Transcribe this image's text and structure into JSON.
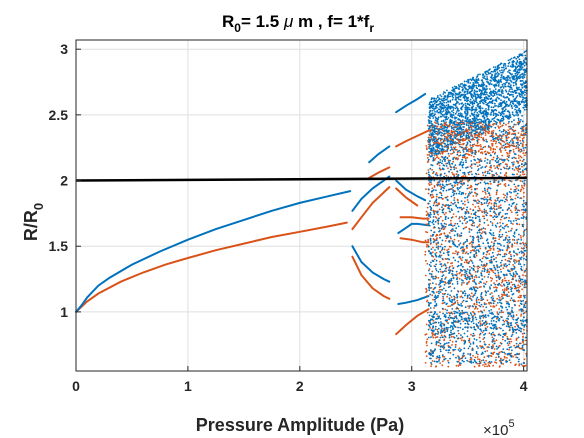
{
  "chart_data": {
    "type": "scatter",
    "title": {
      "p1": "R",
      "p1_sub": "0",
      "p2": "= 1.5 ",
      "p2_greek": "μ",
      "p3": " m , f= 1*f",
      "p3_sub": "r"
    },
    "xlabel": "Pressure Amplitude (Pa)",
    "ylabel": {
      "main": "R/R",
      "sub": "0"
    },
    "x_exponent": {
      "base": "×10",
      "power": "5"
    },
    "xlim": [
      0,
      4.03
    ],
    "ylim": [
      0.55,
      3.07
    ],
    "xticks": [
      {
        "v": 0,
        "label": "0"
      },
      {
        "v": 1,
        "label": "1"
      },
      {
        "v": 2,
        "label": "2"
      },
      {
        "v": 3,
        "label": "3"
      },
      {
        "v": 4,
        "label": "4"
      }
    ],
    "yticks": [
      {
        "v": 1,
        "label": "1"
      },
      {
        "v": 1.5,
        "label": "1.5"
      },
      {
        "v": 2,
        "label": "2"
      },
      {
        "v": 2.5,
        "label": "2.5"
      },
      {
        "v": 3,
        "label": "3"
      }
    ],
    "grid": true,
    "x_units": "×10^5 Pa",
    "series": [
      {
        "color": "#0072BD",
        "branches": [
          {
            "points": [
              [
                0,
                1.0
              ],
              [
                0.05,
                1.05
              ],
              [
                0.1,
                1.11
              ],
              [
                0.2,
                1.2
              ],
              [
                0.3,
                1.26
              ],
              [
                0.5,
                1.36
              ],
              [
                0.75,
                1.46
              ],
              [
                1.0,
                1.55
              ],
              [
                1.25,
                1.63
              ],
              [
                1.5,
                1.7
              ],
              [
                1.75,
                1.77
              ],
              [
                2.0,
                1.83
              ],
              [
                2.25,
                1.88
              ],
              [
                2.45,
                1.92
              ]
            ]
          },
          {
            "points": [
              [
                2.47,
                1.77
              ],
              [
                2.55,
                1.86
              ],
              [
                2.65,
                1.94
              ],
              [
                2.75,
                2.0
              ],
              [
                2.8,
                2.03
              ]
            ]
          },
          {
            "points": [
              [
                2.47,
                1.5
              ],
              [
                2.55,
                1.38
              ],
              [
                2.65,
                1.3
              ],
              [
                2.75,
                1.25
              ],
              [
                2.8,
                1.23
              ]
            ]
          },
          {
            "points": [
              [
                2.62,
                2.14
              ],
              [
                2.7,
                2.2
              ],
              [
                2.8,
                2.26
              ]
            ]
          },
          {
            "points": [
              [
                2.86,
                2.52
              ],
              [
                2.95,
                2.57
              ],
              [
                3.05,
                2.62
              ],
              [
                3.12,
                2.66
              ]
            ]
          },
          {
            "points": [
              [
                2.86,
                2.0
              ],
              [
                2.95,
                1.93
              ],
              [
                3.05,
                1.88
              ],
              [
                3.12,
                1.85
              ]
            ]
          },
          {
            "points": [
              [
                2.88,
                1.6
              ],
              [
                2.95,
                1.64
              ],
              [
                3.0,
                1.67
              ],
              [
                3.05,
                1.67
              ],
              [
                3.15,
                1.66
              ]
            ]
          },
          {
            "points": [
              [
                2.88,
                1.06
              ],
              [
                2.95,
                1.07
              ],
              [
                3.05,
                1.09
              ],
              [
                3.15,
                1.12
              ]
            ]
          }
        ]
      },
      {
        "color": "#D95319",
        "branches": [
          {
            "points": [
              [
                0,
                1.0
              ],
              [
                0.05,
                1.04
              ],
              [
                0.1,
                1.08
              ],
              [
                0.2,
                1.14
              ],
              [
                0.4,
                1.23
              ],
              [
                0.6,
                1.3
              ],
              [
                0.8,
                1.36
              ],
              [
                1.0,
                1.41
              ],
              [
                1.25,
                1.47
              ],
              [
                1.5,
                1.52
              ],
              [
                1.75,
                1.57
              ],
              [
                2.0,
                1.61
              ],
              [
                2.25,
                1.65
              ],
              [
                2.42,
                1.68
              ]
            ]
          },
          {
            "points": [
              [
                2.47,
                1.63
              ],
              [
                2.55,
                1.72
              ],
              [
                2.65,
                1.83
              ],
              [
                2.75,
                1.91
              ],
              [
                2.8,
                1.95
              ]
            ]
          },
          {
            "points": [
              [
                2.47,
                1.42
              ],
              [
                2.55,
                1.28
              ],
              [
                2.65,
                1.18
              ],
              [
                2.75,
                1.12
              ],
              [
                2.8,
                1.1
              ]
            ]
          },
          {
            "points": [
              [
                2.62,
                2.02
              ],
              [
                2.7,
                2.06
              ],
              [
                2.8,
                2.1
              ]
            ]
          },
          {
            "points": [
              [
                2.86,
                2.26
              ],
              [
                2.95,
                2.3
              ],
              [
                3.05,
                2.34
              ],
              [
                3.15,
                2.38
              ]
            ]
          },
          {
            "points": [
              [
                2.9,
                1.56
              ],
              [
                3.0,
                1.55
              ],
              [
                3.1,
                1.53
              ],
              [
                3.15,
                1.53
              ]
            ]
          },
          {
            "points": [
              [
                2.9,
                1.72
              ],
              [
                3.0,
                1.72
              ],
              [
                3.1,
                1.71
              ],
              [
                3.15,
                1.71
              ]
            ]
          },
          {
            "points": [
              [
                2.86,
                0.83
              ],
              [
                2.95,
                0.9
              ],
              [
                3.05,
                0.97
              ],
              [
                3.15,
                1.02
              ]
            ]
          },
          {
            "points": [
              [
                2.86,
                1.94
              ],
              [
                2.95,
                1.87
              ],
              [
                3.05,
                1.81
              ]
            ]
          }
        ]
      },
      {
        "color": "#000000",
        "points": [
          [
            0,
            2.0
          ],
          [
            4.03,
            2.02
          ]
        ]
      }
    ]
  }
}
